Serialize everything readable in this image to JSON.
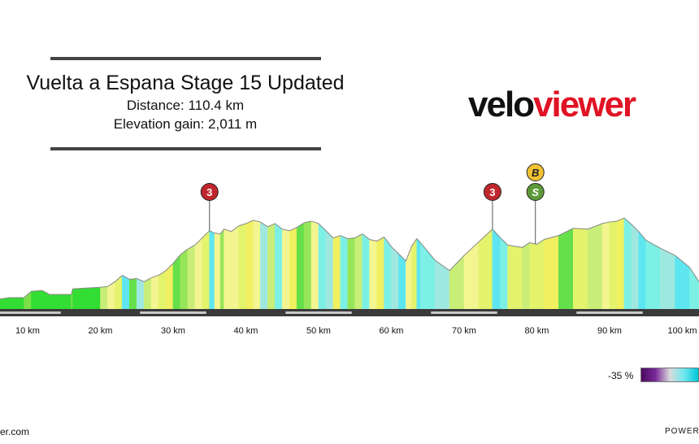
{
  "header": {
    "title": "Vuelta a Espana Stage 15 Updated",
    "distance_text": "Distance: 110.4 km",
    "elevation_text": "Elevation gain: 2,011 m"
  },
  "logo": {
    "part1": "velo",
    "part2": "viewer",
    "color_part1": "#111111",
    "color_part2": "#e01324"
  },
  "legend": {
    "min_label": "-35 %"
  },
  "footer": {
    "left_text": "er.com",
    "right_text": "POWERE"
  },
  "colors": {
    "km_marker": "#c8c8c8",
    "baseline": "#3a3a3a",
    "cat3_badge": "#c0262d",
    "bonus_badge": "#f2c233",
    "sprint_badge": "#5e9a3a",
    "profile_line": "#888888"
  },
  "chart_data": {
    "type": "area",
    "x_unit": "km",
    "x_range": [
      6,
      102.5
    ],
    "y_relative_range": [
      0,
      1
    ],
    "tick_labels": [
      "10 km",
      "20 km",
      "30 km",
      "40 km",
      "50 km",
      "60 km",
      "70 km",
      "80 km",
      "90 km",
      "100 km"
    ],
    "tick_values": [
      10,
      20,
      30,
      40,
      50,
      60,
      70,
      80,
      90,
      100
    ],
    "profile": [
      [
        6,
        0.0
      ],
      [
        7.5,
        0.02
      ],
      [
        9.5,
        0.02
      ],
      [
        10.5,
        0.1
      ],
      [
        12,
        0.11
      ],
      [
        13,
        0.06
      ],
      [
        16,
        0.06
      ],
      [
        16.2,
        0.13
      ],
      [
        20,
        0.15
      ],
      [
        21,
        0.16
      ],
      [
        22,
        0.22
      ],
      [
        23,
        0.3
      ],
      [
        24,
        0.25
      ],
      [
        25,
        0.26
      ],
      [
        26,
        0.22
      ],
      [
        27,
        0.27
      ],
      [
        28,
        0.3
      ],
      [
        29,
        0.36
      ],
      [
        30,
        0.45
      ],
      [
        31,
        0.56
      ],
      [
        32,
        0.63
      ],
      [
        33,
        0.68
      ],
      [
        34,
        0.77
      ],
      [
        35,
        0.86
      ],
      [
        35.7,
        0.83
      ],
      [
        36.5,
        0.82
      ],
      [
        37,
        0.88
      ],
      [
        38,
        0.85
      ],
      [
        39,
        0.92
      ],
      [
        40,
        0.95
      ],
      [
        41,
        0.99
      ],
      [
        42,
        0.97
      ],
      [
        43,
        0.91
      ],
      [
        44,
        0.95
      ],
      [
        45,
        0.88
      ],
      [
        46,
        0.86
      ],
      [
        47,
        0.9
      ],
      [
        48,
        0.96
      ],
      [
        49,
        0.98
      ],
      [
        50,
        0.95
      ],
      [
        51,
        0.86
      ],
      [
        52,
        0.77
      ],
      [
        53,
        0.8
      ],
      [
        54,
        0.76
      ],
      [
        55,
        0.77
      ],
      [
        56,
        0.82
      ],
      [
        57,
        0.75
      ],
      [
        58,
        0.73
      ],
      [
        59,
        0.78
      ],
      [
        60,
        0.66
      ],
      [
        61,
        0.57
      ],
      [
        62,
        0.48
      ],
      [
        62.8,
        0.67
      ],
      [
        63.5,
        0.76
      ],
      [
        64,
        0.71
      ],
      [
        66,
        0.49
      ],
      [
        68,
        0.36
      ],
      [
        70,
        0.55
      ],
      [
        72,
        0.72
      ],
      [
        73.9,
        0.88
      ],
      [
        75,
        0.77
      ],
      [
        76,
        0.68
      ],
      [
        78,
        0.65
      ],
      [
        79,
        0.71
      ],
      [
        80,
        0.69
      ],
      [
        81,
        0.75
      ],
      [
        83,
        0.8
      ],
      [
        85,
        0.89
      ],
      [
        87,
        0.88
      ],
      [
        89,
        0.95
      ],
      [
        90,
        0.97
      ],
      [
        91,
        0.98
      ],
      [
        92,
        1.02
      ],
      [
        93,
        0.94
      ],
      [
        94,
        0.85
      ],
      [
        95,
        0.74
      ],
      [
        97,
        0.64
      ],
      [
        99,
        0.55
      ],
      [
        101,
        0.4
      ],
      [
        102.5,
        0.22
      ]
    ],
    "markers": [
      {
        "type": "cat3",
        "label": "3",
        "km": 35
      },
      {
        "type": "cat3",
        "label": "3",
        "km": 73.9
      },
      {
        "type": "sprint",
        "label": "S",
        "km": 79.8
      },
      {
        "type": "bonus",
        "label": "B",
        "km": 79.8
      }
    ],
    "gradient_legend": {
      "min": "-35 %"
    }
  }
}
